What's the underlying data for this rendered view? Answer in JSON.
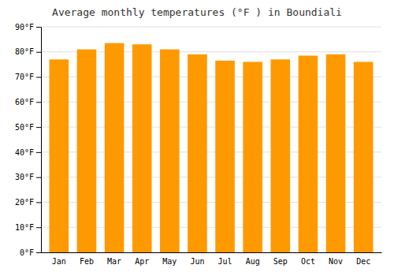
{
  "chart_data": {
    "type": "bar",
    "title": "Average monthly temperatures (°F ) in Boundiali",
    "categories": [
      "Jan",
      "Feb",
      "Mar",
      "Apr",
      "May",
      "Jun",
      "Jul",
      "Aug",
      "Sep",
      "Oct",
      "Nov",
      "Dec"
    ],
    "values": [
      77,
      81,
      83.5,
      83,
      81,
      79,
      76.5,
      76,
      77,
      78.5,
      79,
      76
    ],
    "color": "#ff9900",
    "ylim": [
      0,
      90
    ],
    "yticks": [
      {
        "value": 0,
        "label": "0°F"
      },
      {
        "value": 10,
        "label": "10°F"
      },
      {
        "value": 20,
        "label": "20°F"
      },
      {
        "value": 30,
        "label": "30°F"
      },
      {
        "value": 40,
        "label": "40°F"
      },
      {
        "value": 50,
        "label": "50°F"
      },
      {
        "value": 60,
        "label": "60°F"
      },
      {
        "value": 70,
        "label": "70°F"
      },
      {
        "value": 80,
        "label": "80°F"
      },
      {
        "value": 90,
        "label": "90°F"
      }
    ],
    "grid": true
  }
}
